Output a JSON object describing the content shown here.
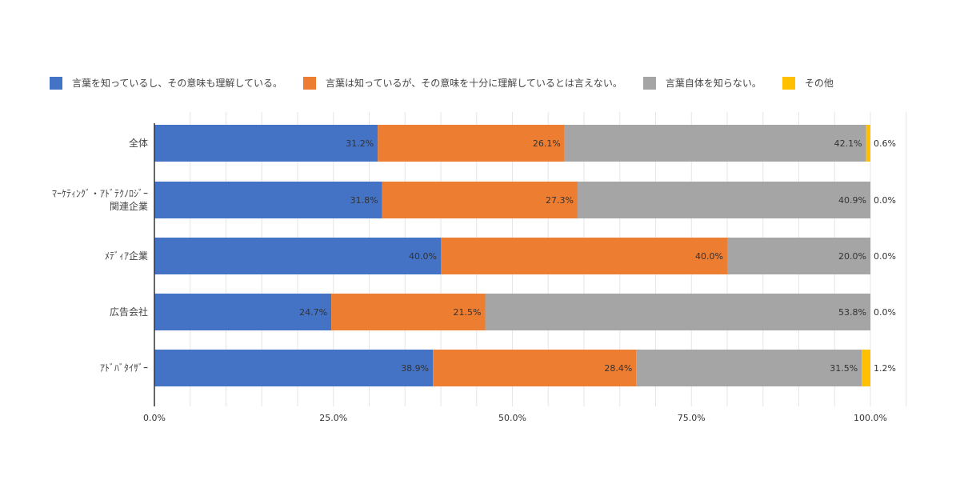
{
  "chart_data": {
    "type": "bar",
    "orientation": "horizontal",
    "stacked": true,
    "categories": [
      [
        "全体"
      ],
      [
        "ﾏｰｹﾃｨﾝｸﾞ・ｱﾄﾞﾃｸﾉﾛｼﾞｰ",
        "関連企業"
      ],
      [
        "ﾒﾃﾞｨｱ企業"
      ],
      [
        "広告会社"
      ],
      [
        "ｱﾄﾞﾊﾞﾀｲｻﾞｰ"
      ]
    ],
    "series": [
      {
        "name": "言葉を知っているし、その意味も理解している。",
        "color": "#4472C4",
        "values": [
          31.2,
          31.8,
          40.0,
          24.7,
          38.9
        ]
      },
      {
        "name": "言葉は知っているが、その意味を十分に理解しているとは言えない。",
        "color": "#ED7D31",
        "values": [
          26.1,
          27.3,
          40.0,
          21.5,
          28.4
        ]
      },
      {
        "name": "言葉自体を知らない。",
        "color": "#A5A5A5",
        "values": [
          42.1,
          40.9,
          20.0,
          53.8,
          31.5
        ]
      },
      {
        "name": "その他",
        "color": "#FFC000",
        "values": [
          0.6,
          0.0,
          0.0,
          0.0,
          1.2
        ]
      }
    ],
    "xlim": [
      0,
      100
    ],
    "xticks": [
      "0.0%",
      "25.0%",
      "50.0%",
      "75.0%",
      "100.0%"
    ],
    "value_suffix": "%",
    "grid": true,
    "legend_position": "top"
  }
}
